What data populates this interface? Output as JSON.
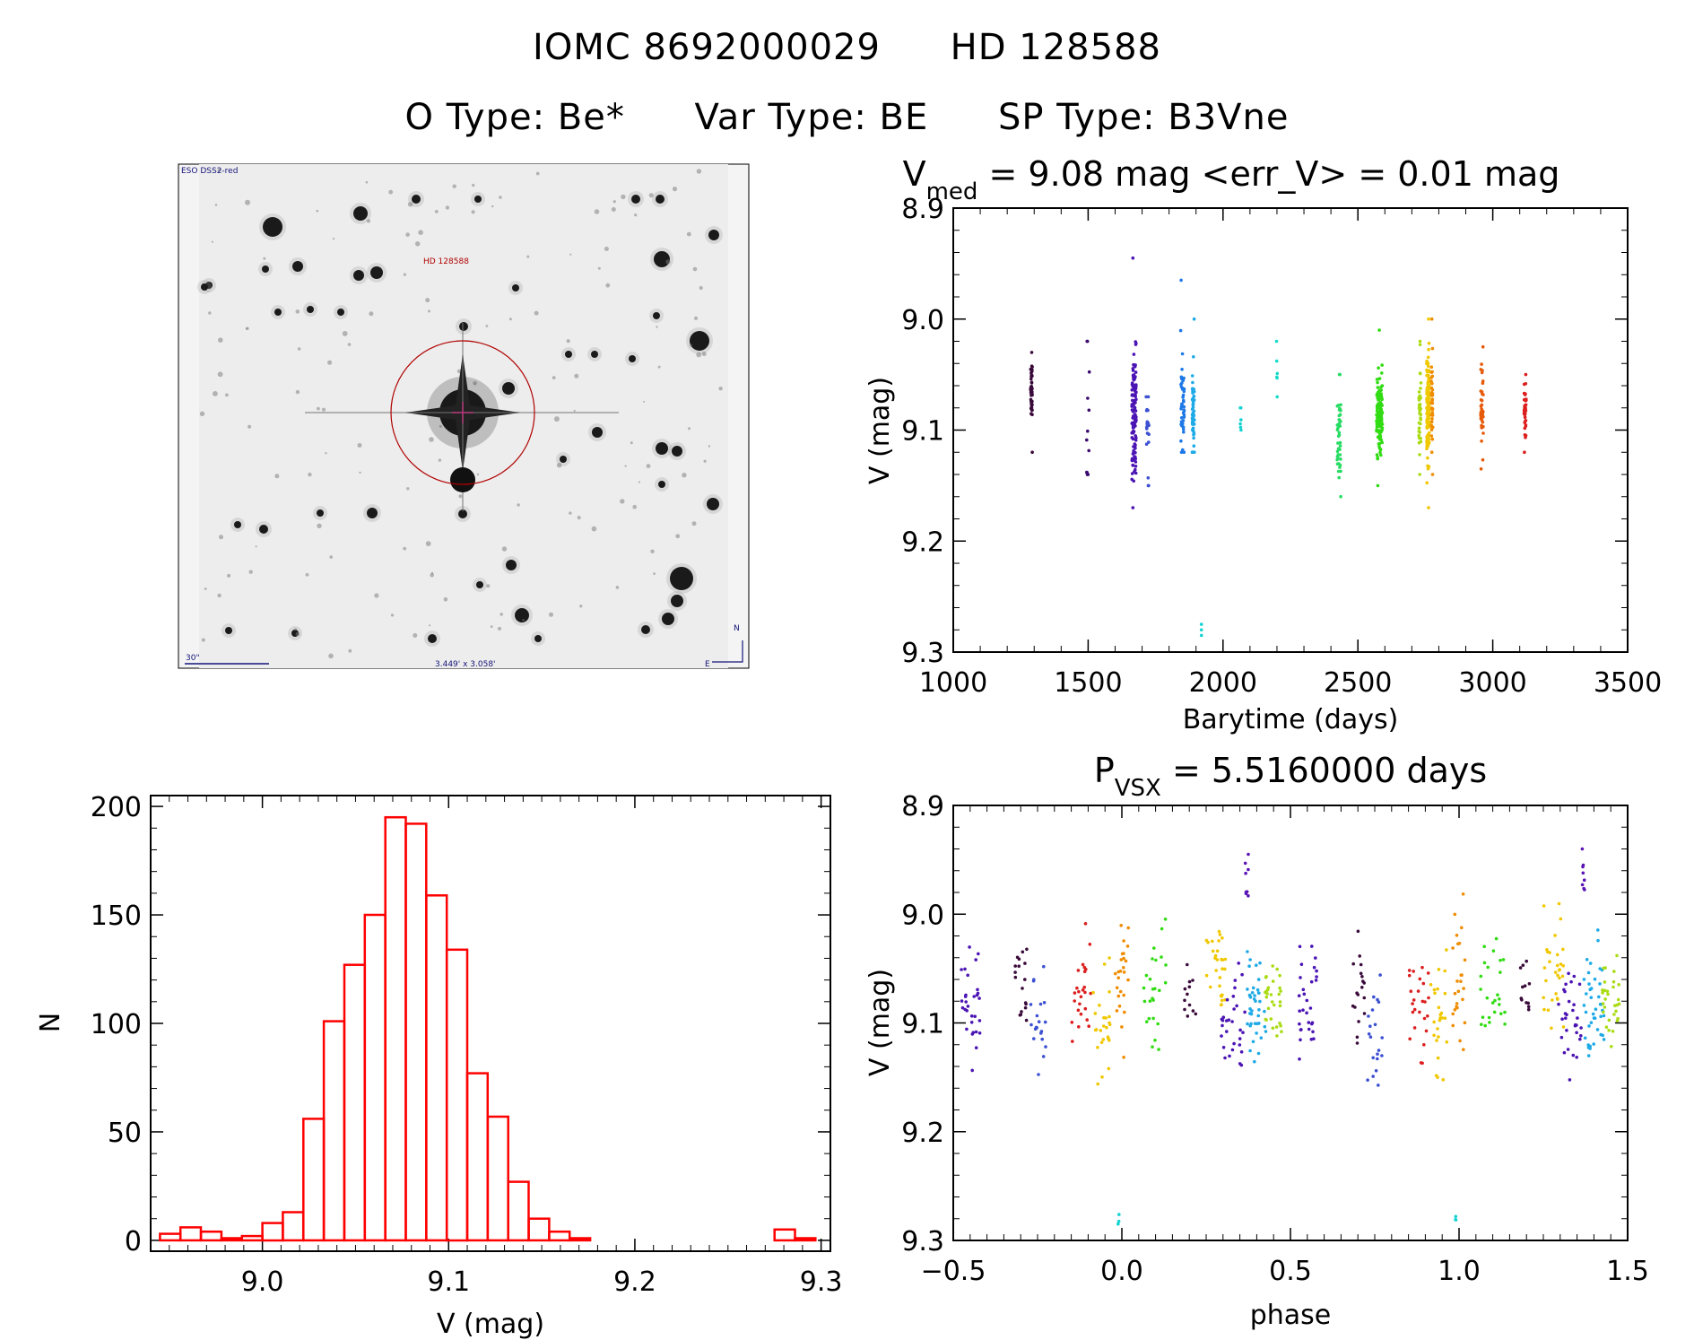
{
  "header": {
    "line1": [
      "IOMC 8692000029",
      "HD 128588"
    ],
    "line2": [
      "O Type: Be*",
      "Var Type: BE",
      "SP Type: B3Vne"
    ]
  },
  "finder": {
    "survey_label": "ESO DSS2-red",
    "target_label": "HD 128588",
    "scale_label": "30\"",
    "fov_label": "3.449' x 3.058'",
    "north_label": "N",
    "east_label": "E"
  },
  "chart_data": [
    {
      "id": "lightcurve",
      "type": "scatter",
      "title_parts": [
        "V",
        "med",
        " = 9.08 mag <err_V> = 0.01 mag"
      ],
      "xlabel": "Barytime (days)",
      "ylabel": "V (mag)",
      "xlim": [
        1000,
        3500
      ],
      "ylim": [
        9.3,
        8.9
      ],
      "xticks": [
        1000,
        1500,
        2000,
        2500,
        3000,
        3500
      ],
      "xtick_labels": [
        "1000",
        "1500",
        "2000",
        "2500",
        "3000",
        "3500"
      ],
      "yticks": [
        8.9,
        9.0,
        9.1,
        9.2,
        9.3
      ],
      "ytick_labels": [
        "8.9",
        "9.0",
        "9.1",
        "9.2",
        "9.3"
      ],
      "groups": [
        {
          "t": 1290,
          "spread": 6,
          "n": 45,
          "mean": 9.068,
          "sd": 0.014,
          "min": 9.03,
          "max": 9.12,
          "color": "#3a0a3a"
        },
        {
          "t": 1500,
          "spread": 14,
          "n": 14,
          "mean": 9.1,
          "sd": 0.035,
          "min": 9.02,
          "max": 9.14,
          "color": "#3c0a6e"
        },
        {
          "t": 1670,
          "spread": 16,
          "n": 120,
          "mean": 9.085,
          "sd": 0.028,
          "min": 8.945,
          "max": 9.17,
          "color": "#4b14b4"
        },
        {
          "t": 1720,
          "spread": 10,
          "n": 20,
          "mean": 9.1,
          "sd": 0.02,
          "min": 9.07,
          "max": 9.15,
          "color": "#3c50d2"
        },
        {
          "t": 1850,
          "spread": 14,
          "n": 45,
          "mean": 9.08,
          "sd": 0.02,
          "min": 8.965,
          "max": 9.12,
          "color": "#1e78e6"
        },
        {
          "t": 1890,
          "spread": 8,
          "n": 55,
          "mean": 9.08,
          "sd": 0.018,
          "min": 9.0,
          "max": 9.12,
          "color": "#1eaae6"
        },
        {
          "t": 2065,
          "spread": 4,
          "n": 6,
          "mean": 9.09,
          "sd": 0.005,
          "min": 9.08,
          "max": 9.1,
          "color": "#14d2d2"
        },
        {
          "t": 2200,
          "spread": 4,
          "n": 6,
          "mean": 9.045,
          "sd": 0.008,
          "min": 9.02,
          "max": 9.07,
          "color": "#14dcc8"
        },
        {
          "t": 2430,
          "spread": 14,
          "n": 45,
          "mean": 9.105,
          "sd": 0.022,
          "min": 9.05,
          "max": 9.16,
          "color": "#28dc64"
        },
        {
          "t": 2580,
          "spread": 22,
          "n": 130,
          "mean": 9.085,
          "sd": 0.017,
          "min": 9.01,
          "max": 9.15,
          "color": "#32dc14"
        },
        {
          "t": 2730,
          "spread": 8,
          "n": 40,
          "mean": 9.08,
          "sd": 0.02,
          "min": 9.02,
          "max": 9.14,
          "color": "#aadc14"
        },
        {
          "t": 2760,
          "spread": 10,
          "n": 150,
          "mean": 9.08,
          "sd": 0.022,
          "min": 9.0,
          "max": 9.17,
          "color": "#f0c800"
        },
        {
          "t": 2775,
          "spread": 6,
          "n": 40,
          "mean": 9.075,
          "sd": 0.02,
          "min": 9.0,
          "max": 9.14,
          "color": "#f08c00"
        },
        {
          "t": 2960,
          "spread": 10,
          "n": 40,
          "mean": 9.08,
          "sd": 0.02,
          "min": 9.025,
          "max": 9.135,
          "color": "#e65a0a"
        },
        {
          "t": 3120,
          "spread": 8,
          "n": 35,
          "mean": 9.08,
          "sd": 0.012,
          "min": 9.05,
          "max": 9.12,
          "color": "#dc1e1e"
        }
      ],
      "outliers": {
        "t": 1920,
        "values": [
          9.275,
          9.28,
          9.285
        ],
        "color": "#14d2d2"
      }
    },
    {
      "id": "histogram",
      "type": "bar",
      "xlabel": "V (mag)",
      "ylabel": "N",
      "xlim": [
        8.94,
        9.305
      ],
      "ylim": [
        -5,
        205
      ],
      "xticks": [
        9.0,
        9.1,
        9.2,
        9.3
      ],
      "xtick_labels": [
        "9.0",
        "9.1",
        "9.2",
        "9.3"
      ],
      "yticks": [
        0,
        50,
        100,
        150,
        200
      ],
      "ytick_labels": [
        "0",
        "50",
        "100",
        "150",
        "200"
      ],
      "bin_width": 0.011,
      "bin_start": 8.945,
      "counts": [
        3,
        6,
        4,
        1,
        2,
        8,
        13,
        56,
        101,
        127,
        150,
        195,
        192,
        159,
        134,
        77,
        57,
        27,
        10,
        4,
        1,
        0,
        0,
        0,
        0,
        0,
        0,
        0,
        0,
        0,
        5,
        1
      ],
      "color": "#ff0000"
    },
    {
      "id": "phased",
      "type": "scatter",
      "title_parts": [
        "P",
        "VSX",
        " = 5.5160000 days"
      ],
      "xlabel": "phase",
      "ylabel": "V (mag)",
      "period_days": 5.516,
      "xlim": [
        -0.5,
        1.5
      ],
      "ylim": [
        9.3,
        8.9
      ],
      "xticks": [
        -0.5,
        0.0,
        0.5,
        1.0,
        1.5
      ],
      "xtick_labels": [
        "−0.5",
        "0.0",
        "0.5",
        "1.0",
        "1.5"
      ],
      "yticks": [
        8.9,
        9.0,
        9.1,
        9.2,
        9.3
      ],
      "ytick_labels": [
        "8.9",
        "9.0",
        "9.1",
        "9.2",
        "9.3"
      ],
      "groups": [
        {
          "phase": 0.37,
          "width": 0.01,
          "n": 8,
          "mean": 8.97,
          "sd": 0.012,
          "color": "#5a14b4"
        },
        {
          "phase": -0.01,
          "width": 0.005,
          "n": 3,
          "mean": 9.28,
          "sd": 0.003,
          "color": "#14d2d2"
        },
        {
          "phase": -0.45,
          "width": 0.06,
          "n": 30,
          "mean": 9.08,
          "sd": 0.025,
          "color": "#4b14b4"
        },
        {
          "phase": -0.3,
          "width": 0.04,
          "n": 18,
          "mean": 9.07,
          "sd": 0.03,
          "color": "#3a0a3a"
        },
        {
          "phase": -0.25,
          "width": 0.05,
          "n": 20,
          "mean": 9.1,
          "sd": 0.03,
          "color": "#3c50d2"
        },
        {
          "phase": -0.12,
          "width": 0.06,
          "n": 25,
          "mean": 9.08,
          "sd": 0.025,
          "color": "#dc1e1e"
        },
        {
          "phase": -0.06,
          "width": 0.05,
          "n": 25,
          "mean": 9.1,
          "sd": 0.03,
          "color": "#f0c800"
        },
        {
          "phase": 0.0,
          "width": 0.04,
          "n": 25,
          "mean": 9.06,
          "sd": 0.03,
          "color": "#f08c00"
        },
        {
          "phase": 0.1,
          "width": 0.08,
          "n": 25,
          "mean": 9.07,
          "sd": 0.025,
          "color": "#32dc14"
        },
        {
          "phase": 0.2,
          "width": 0.04,
          "n": 12,
          "mean": 9.075,
          "sd": 0.015,
          "color": "#3a0a3a"
        },
        {
          "phase": 0.28,
          "width": 0.06,
          "n": 30,
          "mean": 9.05,
          "sd": 0.025,
          "color": "#f0c800"
        },
        {
          "phase": 0.33,
          "width": 0.07,
          "n": 30,
          "mean": 9.085,
          "sd": 0.03,
          "color": "#4b14b4"
        },
        {
          "phase": 0.4,
          "width": 0.06,
          "n": 40,
          "mean": 9.08,
          "sd": 0.025,
          "color": "#1eaae6"
        },
        {
          "phase": 0.45,
          "width": 0.05,
          "n": 30,
          "mean": 9.08,
          "sd": 0.02,
          "color": "#aadc14"
        },
        {
          "phase": 0.55,
          "width": 0.06,
          "n": 30,
          "mean": 9.08,
          "sd": 0.025,
          "color": "#4b14b4"
        },
        {
          "phase": 0.7,
          "width": 0.04,
          "n": 18,
          "mean": 9.07,
          "sd": 0.03,
          "color": "#3a0a3a"
        },
        {
          "phase": 0.75,
          "width": 0.05,
          "n": 20,
          "mean": 9.1,
          "sd": 0.03,
          "color": "#3c50d2"
        },
        {
          "phase": 0.88,
          "width": 0.06,
          "n": 25,
          "mean": 9.08,
          "sd": 0.025,
          "color": "#dc1e1e"
        },
        {
          "phase": 0.94,
          "width": 0.05,
          "n": 25,
          "mean": 9.1,
          "sd": 0.03,
          "color": "#f0c800"
        },
        {
          "phase": 1.0,
          "width": 0.04,
          "n": 25,
          "mean": 9.06,
          "sd": 0.03,
          "color": "#f08c00"
        },
        {
          "phase": 1.1,
          "width": 0.08,
          "n": 25,
          "mean": 9.07,
          "sd": 0.025,
          "color": "#32dc14"
        },
        {
          "phase": 1.2,
          "width": 0.04,
          "n": 12,
          "mean": 9.075,
          "sd": 0.015,
          "color": "#3a0a3a"
        },
        {
          "phase": 1.28,
          "width": 0.06,
          "n": 30,
          "mean": 9.05,
          "sd": 0.025,
          "color": "#f0c800"
        },
        {
          "phase": 1.33,
          "width": 0.07,
          "n": 30,
          "mean": 9.085,
          "sd": 0.03,
          "color": "#4b14b4"
        },
        {
          "phase": 1.4,
          "width": 0.06,
          "n": 40,
          "mean": 9.08,
          "sd": 0.025,
          "color": "#1eaae6"
        },
        {
          "phase": 1.45,
          "width": 0.05,
          "n": 30,
          "mean": 9.08,
          "sd": 0.02,
          "color": "#aadc14"
        },
        {
          "phase": 1.37,
          "width": 0.01,
          "n": 8,
          "mean": 8.97,
          "sd": 0.012,
          "color": "#5a14b4"
        },
        {
          "phase": 0.99,
          "width": 0.005,
          "n": 3,
          "mean": 9.28,
          "sd": 0.003,
          "color": "#14d2d2"
        }
      ]
    }
  ]
}
